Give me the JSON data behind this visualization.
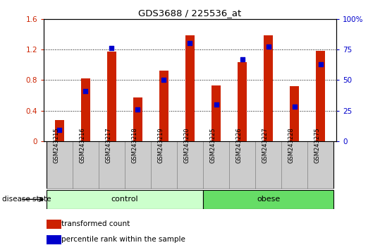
{
  "title": "GDS3688 / 225536_at",
  "samples": [
    "GSM243215",
    "GSM243216",
    "GSM243217",
    "GSM243218",
    "GSM243219",
    "GSM243220",
    "GSM243225",
    "GSM243226",
    "GSM243227",
    "GSM243228",
    "GSM243275"
  ],
  "transformed_count": [
    0.28,
    0.82,
    1.17,
    0.57,
    0.92,
    1.38,
    0.73,
    1.03,
    1.38,
    0.72,
    1.18
  ],
  "percentile_rank_pct": [
    9,
    41,
    76,
    26,
    50,
    80,
    30,
    67,
    77,
    28,
    63
  ],
  "bar_color": "#cc2200",
  "dot_color": "#0000cc",
  "ylim_left": [
    0,
    1.6
  ],
  "ylim_right": [
    0,
    100
  ],
  "yticks_left": [
    0,
    0.4,
    0.8,
    1.2,
    1.6
  ],
  "yticks_right": [
    0,
    25,
    50,
    75,
    100
  ],
  "ytick_labels_left": [
    "0",
    "0.4",
    "0.8",
    "1.2",
    "1.6"
  ],
  "ytick_labels_right": [
    "0",
    "25",
    "50",
    "75",
    "100%"
  ],
  "n_control": 6,
  "control_label": "control",
  "obese_label": "obese",
  "disease_state_label": "disease state",
  "legend_bar_label": "transformed count",
  "legend_dot_label": "percentile rank within the sample",
  "control_color": "#ccffcc",
  "obese_color": "#66dd66",
  "xticklabel_area_color": "#cccccc",
  "bar_width": 0.35
}
